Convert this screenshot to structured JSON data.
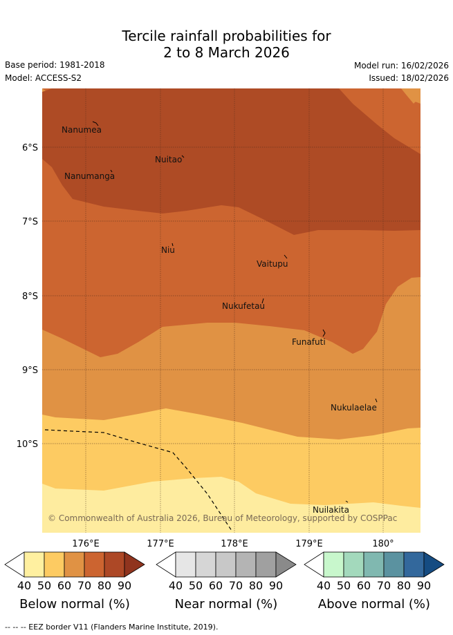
{
  "title_line1": "Tercile rainfall probabilities for",
  "title_line2": "2 to 8 March 2026",
  "base_period": "Base period: 1981-2018",
  "model": "Model: ACCESS-S2",
  "model_run": "Model run: 16/02/2026",
  "issued": "Issued: 18/02/2026",
  "lat_labels": [
    "6°S",
    "7°S",
    "8°S",
    "9°S",
    "10°S"
  ],
  "lon_labels": [
    "176°E",
    "177°E",
    "178°E",
    "179°E",
    "180°"
  ],
  "places": [
    "Nanumea",
    "Nuitao",
    "Nanumanga",
    "Niu",
    "Vaitupu",
    "Nukufetau",
    "Funafuti",
    "Nukulaelae",
    "Nuilakita"
  ],
  "credit": "© Commonwealth of Australia 2026, Bureau of Meteorology, supported by COSPPac",
  "colorbars": [
    {
      "title": "Below normal (%)",
      "ticks": [
        "40",
        "50",
        "60",
        "70",
        "80",
        "90"
      ],
      "colors": [
        "#ffffff",
        "#fff0a0",
        "#fdcb62",
        "#e09244",
        "#cc6430",
        "#ad4826",
        "#90341e"
      ]
    },
    {
      "title": "Near normal (%)",
      "ticks": [
        "40",
        "50",
        "60",
        "70",
        "80",
        "90"
      ],
      "colors": [
        "#ffffff",
        "#e6e6e6",
        "#d6d6d6",
        "#c8c8c8",
        "#b4b4b4",
        "#a0a0a0",
        "#8a8a8a"
      ]
    },
    {
      "title": "Above normal (%)",
      "ticks": [
        "40",
        "50",
        "60",
        "70",
        "80",
        "90"
      ],
      "colors": [
        "#ffffff",
        "#c8f7cc",
        "#a3d9bc",
        "#80b8b0",
        "#5b92a0",
        "#33689c",
        "#154c82"
      ]
    }
  ],
  "footnote": "-- -- -- EEZ border V11 (Flanders Marine Institute, 2019).",
  "colors": {
    "brown_dark": "#ae4b25",
    "brown_mid": "#cc6530",
    "orange": "#e09244",
    "yellow": "#fdcb62",
    "pale_yellow": "#feec9f"
  }
}
